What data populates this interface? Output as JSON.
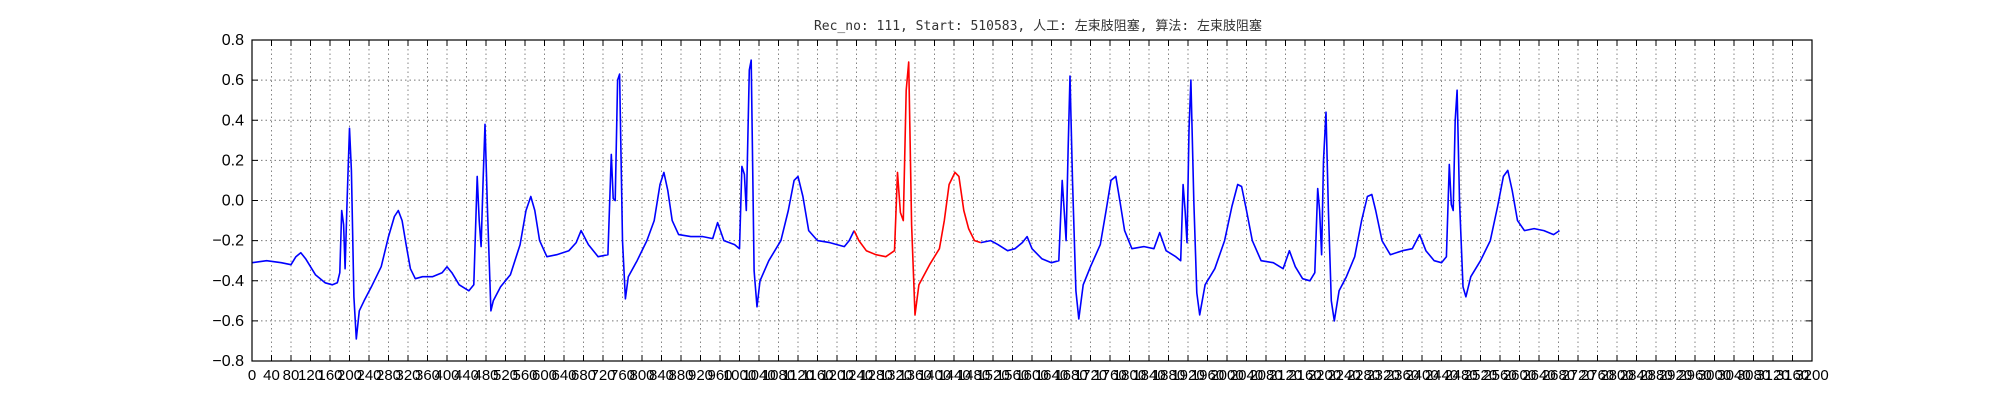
{
  "chart_data": {
    "type": "line",
    "title": "Rec_no: 111, Start: 510583, 人工: 左束肢阻塞, 算法: 左束肢阻塞",
    "xlabel": "",
    "ylabel": "",
    "xlim": [
      0,
      3200
    ],
    "ylim": [
      -0.8,
      0.8
    ],
    "grid": true,
    "yticks": [
      -0.8,
      -0.6,
      -0.4,
      -0.2,
      0.0,
      0.2,
      0.4,
      0.6,
      0.8
    ],
    "ytick_labels": [
      "−0.8",
      "−0.6",
      "−0.4",
      "−0.2",
      "0.0",
      "0.2",
      "0.4",
      "0.6",
      "0.8"
    ],
    "xticks": [
      0,
      40,
      80,
      120,
      160,
      200,
      240,
      280,
      320,
      360,
      400,
      440,
      480,
      520,
      560,
      600,
      640,
      680,
      720,
      760,
      800,
      840,
      880,
      920,
      960,
      1000,
      1040,
      1080,
      1120,
      1160,
      1200,
      1240,
      1280,
      1320,
      1360,
      1400,
      1440,
      1480,
      1520,
      1560,
      1600,
      1640,
      1680,
      1720,
      1760,
      1800,
      1840,
      1880,
      1920,
      1960,
      2000,
      2040,
      2080,
      2120,
      2160,
      2200,
      2240,
      2280,
      2320,
      2360,
      2400,
      2440,
      2480,
      2520,
      2560,
      2600,
      2640,
      2680,
      2720,
      2760,
      2800,
      2840,
      2880,
      2920,
      2960,
      3000,
      3040,
      3080,
      3120,
      3160,
      3200
    ],
    "xtick_labels": [
      "0",
      "40",
      "80",
      "120",
      "160",
      "200",
      "240",
      "280",
      "320",
      "360",
      "400",
      "440",
      "480",
      "520",
      "560",
      "600",
      "640",
      "680",
      "720",
      "760",
      "800",
      "840",
      "880",
      "920",
      "960",
      "1000",
      "1040",
      "1080",
      "1120",
      "1160",
      "1200",
      "1240",
      "1280",
      "1320",
      "1360",
      "1400",
      "1440",
      "1480",
      "1520",
      "1560",
      "1600",
      "1640",
      "1680",
      "1720",
      "1760",
      "1800",
      "1840",
      "1880",
      "1920",
      "1960",
      "2000",
      "2040",
      "2080",
      "2120",
      "2160",
      "2200",
      "2240",
      "2280",
      "2320",
      "2360",
      "2400",
      "2440",
      "2480",
      "2520",
      "2560",
      "2600",
      "2640",
      "2680",
      "2720",
      "2760",
      "2800",
      "2840",
      "2880",
      "2920",
      "2960",
      "3000",
      "3040",
      "3080",
      "3120",
      "3160",
      "3200"
    ],
    "series_colors": [
      "#0000ff",
      "#ff0000"
    ],
    "series": [
      {
        "color": "#0000ff",
        "points": [
          [
            0,
            -0.31
          ],
          [
            30,
            -0.3
          ],
          [
            60,
            -0.31
          ],
          [
            80,
            -0.32
          ],
          [
            90,
            -0.28
          ],
          [
            100,
            -0.26
          ],
          [
            110,
            -0.29
          ],
          [
            130,
            -0.37
          ],
          [
            150,
            -0.41
          ],
          [
            165,
            -0.42
          ],
          [
            175,
            -0.41
          ],
          [
            180,
            -0.36
          ],
          [
            184,
            -0.05
          ],
          [
            188,
            -0.12
          ],
          [
            191,
            -0.34
          ],
          [
            195,
            0.0
          ],
          [
            200,
            0.36
          ],
          [
            204,
            0.15
          ],
          [
            209,
            -0.48
          ],
          [
            214,
            -0.69
          ],
          [
            220,
            -0.55
          ],
          [
            230,
            -0.5
          ],
          [
            245,
            -0.43
          ],
          [
            265,
            -0.33
          ],
          [
            280,
            -0.18
          ],
          [
            292,
            -0.08
          ],
          [
            300,
            -0.05
          ],
          [
            308,
            -0.1
          ],
          [
            316,
            -0.22
          ],
          [
            325,
            -0.34
          ],
          [
            335,
            -0.39
          ],
          [
            350,
            -0.38
          ],
          [
            370,
            -0.38
          ],
          [
            390,
            -0.36
          ],
          [
            400,
            -0.33
          ],
          [
            410,
            -0.36
          ],
          [
            425,
            -0.42
          ],
          [
            445,
            -0.45
          ],
          [
            455,
            -0.42
          ],
          [
            462,
            0.12
          ],
          [
            466,
            -0.1
          ],
          [
            470,
            -0.23
          ],
          [
            474,
            0.1
          ],
          [
            478,
            0.38
          ],
          [
            483,
            -0.05
          ],
          [
            490,
            -0.55
          ],
          [
            495,
            -0.5
          ],
          [
            510,
            -0.43
          ],
          [
            530,
            -0.37
          ],
          [
            550,
            -0.22
          ],
          [
            562,
            -0.05
          ],
          [
            572,
            0.02
          ],
          [
            580,
            -0.05
          ],
          [
            590,
            -0.2
          ],
          [
            605,
            -0.28
          ],
          [
            625,
            -0.27
          ],
          [
            650,
            -0.25
          ],
          [
            665,
            -0.21
          ],
          [
            675,
            -0.15
          ],
          [
            690,
            -0.22
          ],
          [
            710,
            -0.28
          ],
          [
            730,
            -0.27
          ],
          [
            737,
            0.23
          ],
          [
            741,
            0.01
          ],
          [
            745,
            0.0
          ],
          [
            750,
            0.6
          ],
          [
            754,
            0.63
          ],
          [
            760,
            -0.2
          ],
          [
            766,
            -0.49
          ],
          [
            772,
            -0.38
          ],
          [
            790,
            -0.3
          ],
          [
            810,
            -0.2
          ],
          [
            825,
            -0.1
          ],
          [
            837,
            0.08
          ],
          [
            845,
            0.14
          ],
          [
            853,
            0.05
          ],
          [
            862,
            -0.1
          ],
          [
            875,
            -0.17
          ],
          [
            900,
            -0.18
          ],
          [
            925,
            -0.18
          ],
          [
            945,
            -0.19
          ],
          [
            955,
            -0.11
          ],
          [
            968,
            -0.2
          ],
          [
            990,
            -0.22
          ],
          [
            1000,
            -0.24
          ],
          [
            1005,
            0.17
          ],
          [
            1010,
            0.13
          ],
          [
            1014,
            -0.05
          ],
          [
            1020,
            0.65
          ],
          [
            1024,
            0.7
          ],
          [
            1030,
            -0.35
          ],
          [
            1036,
            -0.53
          ],
          [
            1042,
            -0.4
          ],
          [
            1060,
            -0.3
          ],
          [
            1085,
            -0.2
          ],
          [
            1100,
            -0.05
          ],
          [
            1112,
            0.1
          ],
          [
            1120,
            0.12
          ],
          [
            1130,
            0.02
          ],
          [
            1142,
            -0.15
          ],
          [
            1160,
            -0.2
          ],
          [
            1185,
            -0.21
          ],
          [
            1215,
            -0.23
          ],
          [
            1225,
            -0.2
          ],
          [
            1235,
            -0.15
          ]
        ]
      },
      {
        "color": "#ff0000",
        "points": [
          [
            1235,
            -0.15
          ],
          [
            1245,
            -0.2
          ],
          [
            1260,
            -0.25
          ],
          [
            1280,
            -0.27
          ],
          [
            1300,
            -0.28
          ],
          [
            1318,
            -0.25
          ],
          [
            1324,
            0.14
          ],
          [
            1330,
            -0.06
          ],
          [
            1336,
            -0.1
          ],
          [
            1342,
            0.55
          ],
          [
            1347,
            0.69
          ],
          [
            1353,
            -0.12
          ],
          [
            1360,
            -0.57
          ],
          [
            1368,
            -0.42
          ],
          [
            1390,
            -0.32
          ],
          [
            1410,
            -0.24
          ],
          [
            1420,
            -0.1
          ],
          [
            1430,
            0.08
          ],
          [
            1442,
            0.14
          ],
          [
            1450,
            0.12
          ],
          [
            1460,
            -0.05
          ],
          [
            1470,
            -0.14
          ],
          [
            1482,
            -0.2
          ],
          [
            1495,
            -0.21
          ]
        ]
      },
      {
        "color": "#0000ff",
        "points": [
          [
            1495,
            -0.21
          ],
          [
            1515,
            -0.2
          ],
          [
            1530,
            -0.22
          ],
          [
            1550,
            -0.25
          ],
          [
            1565,
            -0.24
          ],
          [
            1580,
            -0.21
          ],
          [
            1590,
            -0.18
          ],
          [
            1600,
            -0.24
          ],
          [
            1620,
            -0.29
          ],
          [
            1640,
            -0.31
          ],
          [
            1655,
            -0.3
          ],
          [
            1662,
            0.1
          ],
          [
            1666,
            -0.05
          ],
          [
            1670,
            -0.2
          ],
          [
            1674,
            0.25
          ],
          [
            1678,
            0.62
          ],
          [
            1683,
            0.1
          ],
          [
            1690,
            -0.45
          ],
          [
            1696,
            -0.59
          ],
          [
            1705,
            -0.42
          ],
          [
            1720,
            -0.33
          ],
          [
            1740,
            -0.22
          ],
          [
            1752,
            -0.05
          ],
          [
            1762,
            0.1
          ],
          [
            1772,
            0.12
          ],
          [
            1780,
            0.0
          ],
          [
            1790,
            -0.15
          ],
          [
            1805,
            -0.24
          ],
          [
            1830,
            -0.23
          ],
          [
            1850,
            -0.24
          ],
          [
            1862,
            -0.16
          ],
          [
            1875,
            -0.25
          ],
          [
            1895,
            -0.28
          ],
          [
            1905,
            -0.3
          ],
          [
            1910,
            0.08
          ],
          [
            1914,
            -0.05
          ],
          [
            1918,
            -0.21
          ],
          [
            1922,
            0.35
          ],
          [
            1926,
            0.6
          ],
          [
            1932,
            0.0
          ],
          [
            1938,
            -0.46
          ],
          [
            1944,
            -0.57
          ],
          [
            1955,
            -0.42
          ],
          [
            1975,
            -0.34
          ],
          [
            1995,
            -0.2
          ],
          [
            2010,
            -0.03
          ],
          [
            2022,
            0.08
          ],
          [
            2030,
            0.07
          ],
          [
            2040,
            -0.05
          ],
          [
            2052,
            -0.2
          ],
          [
            2070,
            -0.3
          ],
          [
            2095,
            -0.31
          ],
          [
            2115,
            -0.34
          ],
          [
            2128,
            -0.25
          ],
          [
            2140,
            -0.33
          ],
          [
            2155,
            -0.39
          ],
          [
            2170,
            -0.4
          ],
          [
            2180,
            -0.36
          ],
          [
            2186,
            0.06
          ],
          [
            2190,
            -0.05
          ],
          [
            2194,
            -0.27
          ],
          [
            2198,
            0.2
          ],
          [
            2203,
            0.44
          ],
          [
            2208,
            -0.05
          ],
          [
            2214,
            -0.5
          ],
          [
            2220,
            -0.6
          ],
          [
            2230,
            -0.45
          ],
          [
            2245,
            -0.38
          ],
          [
            2262,
            -0.28
          ],
          [
            2276,
            -0.1
          ],
          [
            2288,
            0.02
          ],
          [
            2297,
            0.03
          ],
          [
            2305,
            -0.05
          ],
          [
            2318,
            -0.2
          ],
          [
            2335,
            -0.27
          ],
          [
            2360,
            -0.25
          ],
          [
            2380,
            -0.24
          ],
          [
            2395,
            -0.17
          ],
          [
            2408,
            -0.25
          ],
          [
            2425,
            -0.3
          ],
          [
            2440,
            -0.31
          ],
          [
            2450,
            -0.28
          ],
          [
            2456,
            0.18
          ],
          [
            2460,
            -0.02
          ],
          [
            2464,
            -0.05
          ],
          [
            2468,
            0.4
          ],
          [
            2472,
            0.55
          ],
          [
            2477,
            0.0
          ],
          [
            2484,
            -0.43
          ],
          [
            2490,
            -0.48
          ],
          [
            2500,
            -0.38
          ],
          [
            2520,
            -0.3
          ],
          [
            2540,
            -0.2
          ],
          [
            2555,
            -0.03
          ],
          [
            2567,
            0.12
          ],
          [
            2576,
            0.15
          ],
          [
            2585,
            0.05
          ],
          [
            2596,
            -0.1
          ],
          [
            2610,
            -0.15
          ],
          [
            2630,
            -0.14
          ],
          [
            2650,
            -0.15
          ],
          [
            2670,
            -0.17
          ],
          [
            2682,
            -0.15
          ]
        ]
      }
    ]
  }
}
